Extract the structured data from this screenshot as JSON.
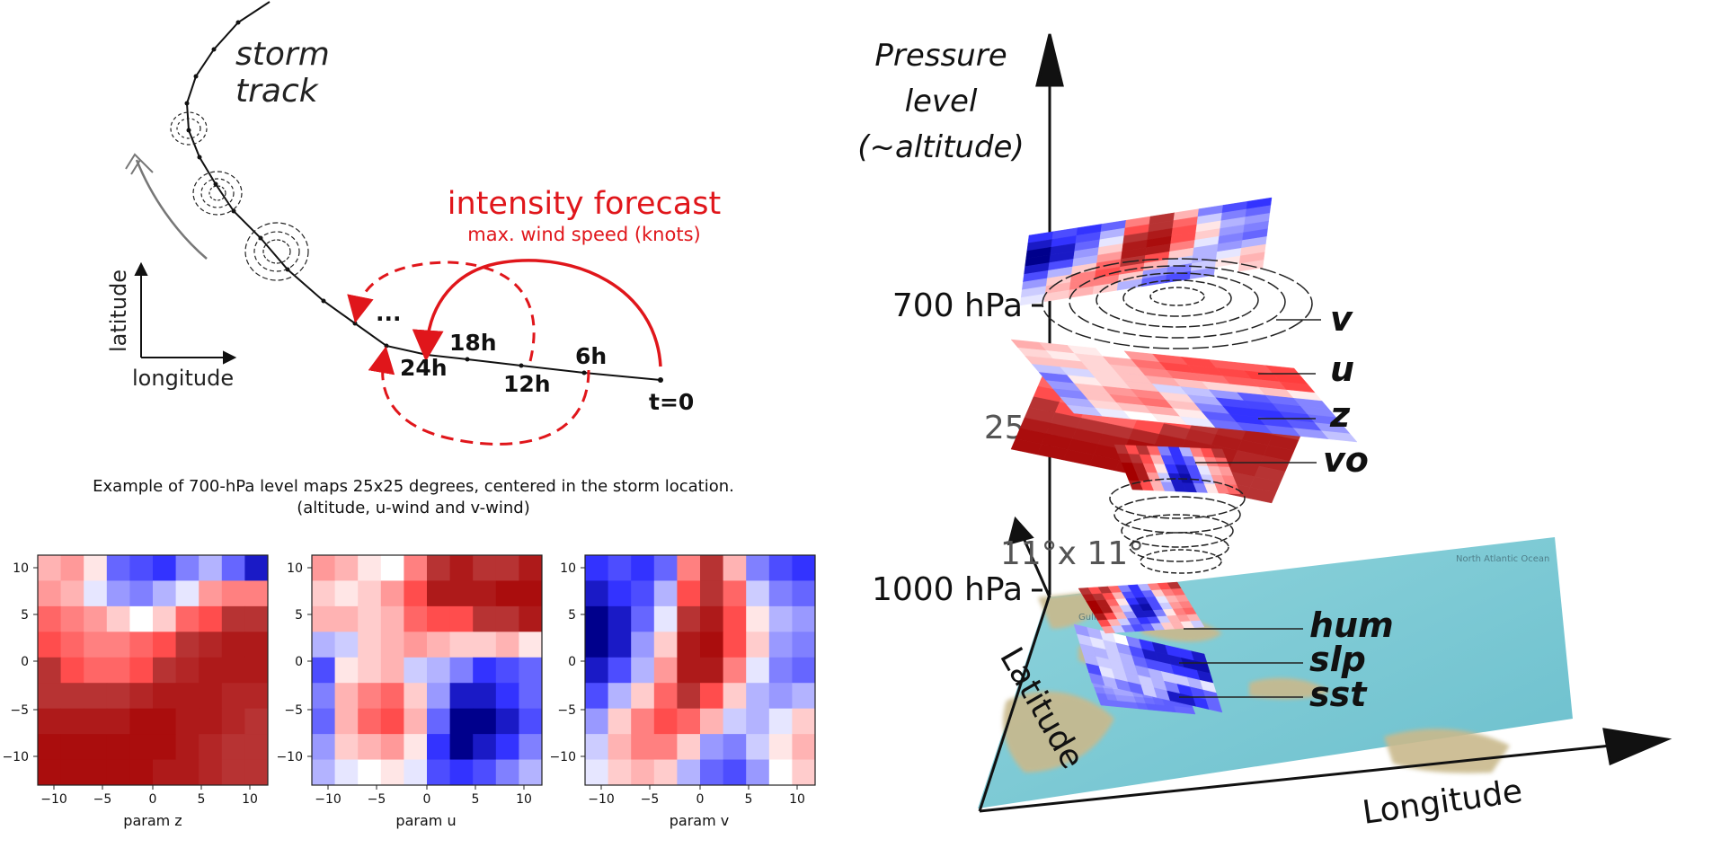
{
  "storm": {
    "track_label_1": "storm",
    "track_label_2": "track",
    "axis_lat": "latitude",
    "axis_lon": "longitude",
    "forecast_title": "intensity forecast",
    "forecast_sub": "max. wind speed (knots)",
    "t0": "t=0",
    "h6": "6h",
    "h12": "12h",
    "h18": "18h",
    "h24": "24h",
    "ellipsis": "..."
  },
  "caption": {
    "line1": "Example of 700-hPa level maps 25x25 degrees, centered in the storm location.",
    "line2": "(altitude, u-wind and v-wind)"
  },
  "heatmaps": {
    "ticks": [
      "10",
      "5",
      "0",
      "-5",
      "10"
    ],
    "xticks": [
      "−10",
      "−5",
      "0",
      "5",
      "10"
    ],
    "ytick_minus10": "−10",
    "z_label": "param z",
    "u_label": "param u",
    "v_label": "param v",
    "z_grid": [
      [
        0.3,
        0.4,
        0.1,
        -0.6,
        -0.7,
        -0.8,
        -0.5,
        -0.3,
        -0.6,
        -0.9
      ],
      [
        0.4,
        0.3,
        -0.1,
        -0.4,
        -0.5,
        -0.3,
        -0.1,
        0.4,
        0.5,
        0.5
      ],
      [
        0.6,
        0.5,
        0.4,
        0.2,
        0.0,
        0.2,
        0.6,
        0.7,
        0.8,
        0.8
      ],
      [
        0.7,
        0.6,
        0.5,
        0.5,
        0.6,
        0.7,
        0.8,
        0.85,
        0.9,
        0.9
      ],
      [
        0.8,
        0.7,
        0.6,
        0.6,
        0.7,
        0.8,
        0.85,
        0.9,
        0.9,
        0.9
      ],
      [
        0.8,
        0.8,
        0.8,
        0.8,
        0.85,
        0.9,
        0.9,
        0.9,
        0.85,
        0.85
      ],
      [
        0.9,
        0.9,
        0.9,
        0.9,
        0.95,
        0.95,
        0.9,
        0.9,
        0.85,
        0.8
      ],
      [
        0.95,
        0.95,
        0.95,
        0.95,
        0.95,
        0.95,
        0.9,
        0.85,
        0.8,
        0.8
      ],
      [
        0.95,
        0.95,
        0.95,
        0.95,
        0.95,
        0.9,
        0.9,
        0.85,
        0.8,
        0.8
      ]
    ],
    "u_grid": [
      [
        0.4,
        0.3,
        0.1,
        0.0,
        0.5,
        0.8,
        0.9,
        0.8,
        0.8,
        0.9
      ],
      [
        0.2,
        0.1,
        0.2,
        0.4,
        0.7,
        0.9,
        0.9,
        0.9,
        0.95,
        0.95
      ],
      [
        0.3,
        0.3,
        0.2,
        0.3,
        0.6,
        0.7,
        0.7,
        0.8,
        0.8,
        0.9
      ],
      [
        -0.3,
        -0.2,
        0.2,
        0.3,
        0.4,
        0.3,
        0.2,
        0.2,
        0.3,
        0.1
      ],
      [
        -0.7,
        0.1,
        0.2,
        0.3,
        -0.2,
        -0.3,
        -0.5,
        -0.8,
        -0.7,
        -0.6
      ],
      [
        -0.5,
        0.3,
        0.5,
        0.6,
        0.2,
        -0.4,
        -0.9,
        -0.9,
        -0.8,
        -0.6
      ],
      [
        -0.6,
        0.3,
        0.6,
        0.7,
        0.3,
        -0.6,
        -1.0,
        -1.0,
        -0.9,
        -0.7
      ],
      [
        -0.4,
        0.2,
        0.3,
        0.4,
        0.1,
        -0.8,
        -1.0,
        -0.9,
        -0.8,
        -0.5
      ],
      [
        -0.3,
        -0.1,
        0.0,
        0.1,
        -0.1,
        -0.7,
        -0.8,
        -0.7,
        -0.5,
        -0.3
      ]
    ],
    "v_grid": [
      [
        -0.8,
        -0.7,
        -0.8,
        -0.6,
        0.5,
        0.8,
        0.3,
        -0.5,
        -0.7,
        -0.8
      ],
      [
        -0.9,
        -0.8,
        -0.7,
        -0.3,
        0.7,
        0.8,
        0.6,
        -0.2,
        -0.5,
        -0.6
      ],
      [
        -1.0,
        -0.9,
        -0.6,
        -0.1,
        0.8,
        0.9,
        0.7,
        0.1,
        -0.3,
        -0.4
      ],
      [
        -1.0,
        -0.9,
        -0.4,
        0.2,
        0.9,
        0.95,
        0.7,
        0.2,
        -0.4,
        -0.5
      ],
      [
        -0.9,
        -0.7,
        -0.3,
        0.4,
        0.9,
        0.9,
        0.5,
        -0.1,
        -0.5,
        -0.6
      ],
      [
        -0.7,
        -0.3,
        0.2,
        0.6,
        0.8,
        0.7,
        0.2,
        -0.3,
        -0.4,
        -0.3
      ],
      [
        -0.4,
        0.2,
        0.5,
        0.7,
        0.6,
        0.3,
        -0.2,
        -0.3,
        -0.1,
        0.2
      ],
      [
        -0.2,
        0.3,
        0.5,
        0.5,
        0.2,
        -0.4,
        -0.5,
        -0.2,
        0.1,
        0.3
      ],
      [
        -0.1,
        0.2,
        0.3,
        0.2,
        -0.3,
        -0.6,
        -0.7,
        -0.4,
        0.0,
        0.2
      ]
    ]
  },
  "stack": {
    "axis_pressure_1": "Pressure",
    "axis_pressure_2": "level",
    "axis_pressure_3": "(~altitude)",
    "tick_700": "700 hPa",
    "tick_1000": "1000 hPa",
    "size_25": "25°x 25°",
    "size_11": "11°x 11°",
    "axis_latitude": "Latitude",
    "axis_longitude": "Longitude",
    "layer_v": "v",
    "layer_u": "u",
    "layer_z": "z",
    "layer_vo": "vo",
    "layer_hum": "hum",
    "layer_slp": "slp",
    "layer_sst": "sst",
    "map_label_gulf": "Gulf of Mexico",
    "map_label_ocean": "North Atlantic Ocean"
  },
  "colors": {
    "forecast_red": "#e0161b",
    "map_sea": "#7ecad6",
    "map_land": "#c9b98c"
  }
}
